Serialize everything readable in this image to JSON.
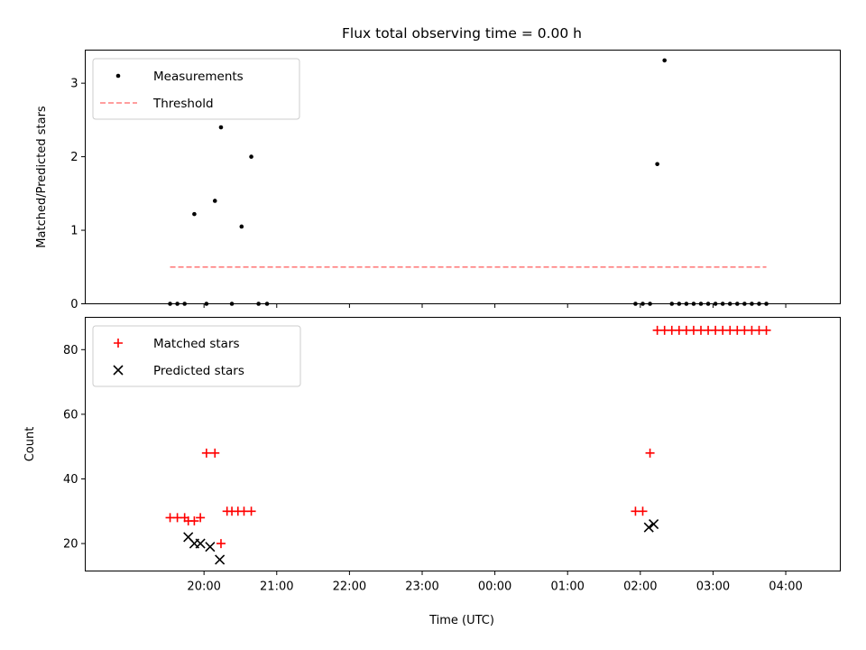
{
  "chart_data": [
    {
      "type": "scatter",
      "title": "Flux total observing time = 0.00 h",
      "xlabel": "",
      "ylabel": "Matched/Predicted stars",
      "xlim": [
        -98,
        525
      ],
      "ylim": [
        0,
        3.45
      ],
      "yticks": [
        0,
        1,
        2,
        3
      ],
      "xticks": [],
      "grid": false,
      "legend_position": "top-left",
      "series": [
        {
          "name": "Measurements",
          "kind": "dot",
          "color": "#000000",
          "x": [
            -28,
            -22,
            -16,
            -8,
            2,
            9,
            14,
            23,
            31,
            39,
            45,
            52,
            356,
            362,
            368,
            374,
            380,
            386,
            392,
            398,
            404,
            410,
            416,
            422,
            428,
            434,
            440,
            446,
            452,
            458,
            464
          ],
          "y": [
            0,
            0,
            0,
            1.22,
            0,
            1.4,
            2.4,
            0,
            1.05,
            2.0,
            0,
            0,
            0,
            0,
            0,
            1.9,
            3.31,
            0,
            0,
            0,
            0,
            0,
            0,
            0,
            0,
            0,
            0,
            0,
            0,
            0,
            0
          ]
        },
        {
          "name": "Threshold",
          "kind": "dashed-line",
          "color": "#ff7f7f",
          "x": [
            -28,
            464
          ],
          "y": [
            0.5,
            0.5
          ]
        }
      ]
    },
    {
      "type": "scatter",
      "title": "",
      "xlabel": "Time (UTC)",
      "ylabel": "Count",
      "xlim": [
        -98,
        525
      ],
      "ylim": [
        11.5,
        90
      ],
      "yticks": [
        20,
        40,
        60,
        80
      ],
      "xticks": [
        {
          "value": 0,
          "label": "20:00"
        },
        {
          "value": 60,
          "label": "21:00"
        },
        {
          "value": 120,
          "label": "22:00"
        },
        {
          "value": 180,
          "label": "23:00"
        },
        {
          "value": 240,
          "label": "00:00"
        },
        {
          "value": 300,
          "label": "01:00"
        },
        {
          "value": 360,
          "label": "02:00"
        },
        {
          "value": 420,
          "label": "03:00"
        },
        {
          "value": 480,
          "label": "04:00"
        }
      ],
      "grid": false,
      "legend_position": "top-left",
      "series": [
        {
          "name": "Matched stars",
          "kind": "plus",
          "color": "#ff0000",
          "x": [
            -28,
            -22,
            -16,
            -13,
            -8,
            -3,
            2,
            9,
            14,
            19,
            23,
            28,
            33,
            39,
            356,
            362,
            368,
            374,
            380,
            386,
            392,
            398,
            404,
            410,
            416,
            422,
            428,
            434,
            440,
            446,
            452,
            458,
            464
          ],
          "y": [
            28,
            28,
            28,
            27,
            27,
            28,
            48,
            48,
            20,
            30,
            30,
            30,
            30,
            30,
            30,
            30,
            48,
            86,
            86,
            86,
            86,
            86,
            86,
            86,
            86,
            86,
            86,
            86,
            86,
            86,
            86,
            86,
            86
          ]
        },
        {
          "name": "Predicted stars",
          "kind": "x",
          "color": "#000000",
          "x": [
            -13,
            -8,
            -3,
            5,
            13,
            367,
            371
          ],
          "y": [
            22,
            20,
            20,
            19,
            15,
            25,
            26
          ]
        }
      ]
    }
  ]
}
